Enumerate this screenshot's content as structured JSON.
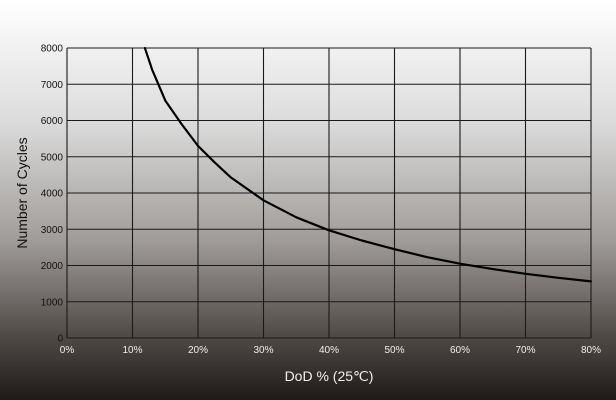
{
  "chart_data": {
    "type": "line",
    "title": "",
    "xlabel": "DoD % (25℃)",
    "ylabel": "Number of Cycles",
    "xlim": [
      0,
      80
    ],
    "ylim": [
      0,
      8000
    ],
    "x_ticks": [
      "0%",
      "10%",
      "20%",
      "30%",
      "40%",
      "50%",
      "60%",
      "70%",
      "80%"
    ],
    "y_ticks": [
      "0",
      "1000",
      "2000",
      "3000",
      "4000",
      "5000",
      "6000",
      "7000",
      "8000"
    ],
    "grid": true,
    "legend": "none",
    "series": [
      {
        "x": [
          11.9,
          13,
          15,
          17.5,
          20,
          22.5,
          25,
          30,
          35,
          40,
          45,
          50,
          55,
          60,
          65,
          70,
          75,
          80
        ],
        "y": [
          8000,
          7400,
          6550,
          5900,
          5300,
          4850,
          4430,
          3800,
          3330,
          2970,
          2690,
          2450,
          2230,
          2050,
          1900,
          1770,
          1660,
          1560
        ],
        "color": "#000000"
      }
    ]
  },
  "colors": {
    "background_top": "#ffffff",
    "background_bottom": "#1e1a18",
    "grid": "#1a1a1a",
    "curve": "#000000"
  }
}
